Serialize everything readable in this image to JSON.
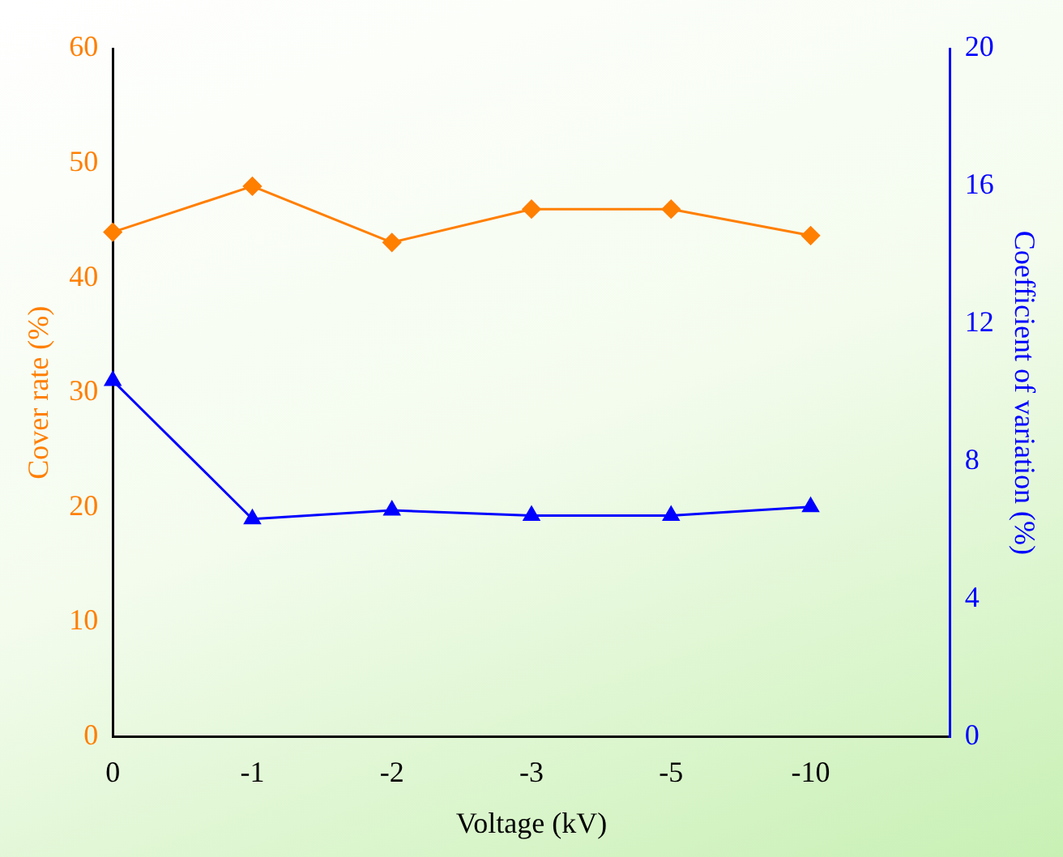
{
  "chart_data": {
    "type": "line",
    "xlabel": "Voltage (kV)",
    "ylabel": "Cover rate (%)",
    "y2label": "Coefficient of variation (%)",
    "categories": [
      "0",
      "-1",
      "-2",
      "-3",
      "-5",
      "-10",
      null
    ],
    "series": [
      {
        "color": "#ff7f00",
        "marker": "diamond",
        "values": [
          44,
          48,
          43.1,
          46,
          46,
          43.7,
          null
        ]
      },
      {
        "color": "#0000ff",
        "marker": "triangle",
        "axis": "y2",
        "values": [
          10.35,
          6.33,
          6.58,
          6.43,
          6.43,
          6.68,
          null
        ]
      }
    ],
    "ylim": [
      0,
      60
    ],
    "yticks": [
      0,
      10,
      20,
      30,
      40,
      50,
      60
    ],
    "y2lim": [
      0,
      20
    ],
    "y2ticks": [
      0,
      4,
      8,
      12,
      16,
      20
    ],
    "grid": false,
    "legend": false,
    "line_style": "solid"
  }
}
